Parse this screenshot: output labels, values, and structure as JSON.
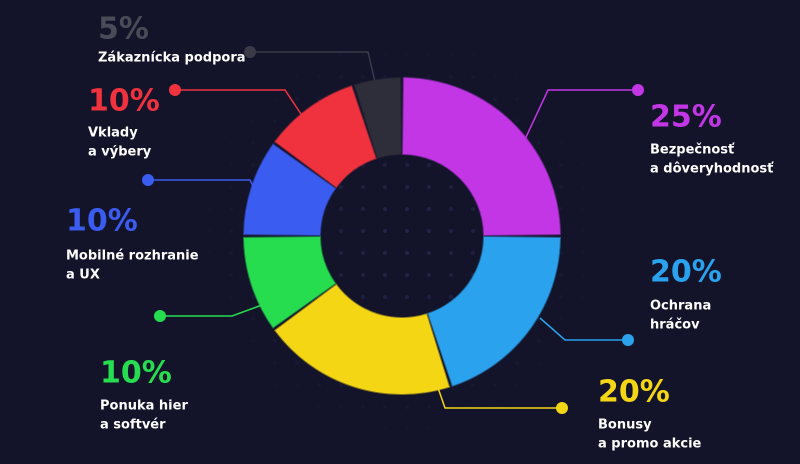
{
  "chart_data": {
    "type": "donut",
    "categories": [
      [
        "Bezpečnosť",
        "a dôveryhodnosť"
      ],
      [
        "Ochrana",
        "hráčov"
      ],
      [
        "Bonusy",
        "a promo akcie"
      ],
      [
        "Ponuka hier",
        "a softvér"
      ],
      [
        "Mobilné rozhranie",
        "a UX"
      ],
      [
        "Vklady",
        "a výbery"
      ],
      [
        "Zákaznícka podpora"
      ]
    ],
    "values": [
      25,
      20,
      20,
      10,
      10,
      10,
      5
    ],
    "value_labels": [
      "25%",
      "20%",
      "20%",
      "10%",
      "10%",
      "10%",
      "5%"
    ],
    "colors": [
      "#c236e6",
      "#2aa2ee",
      "#f4d614",
      "#25dd4f",
      "#3b5cf0",
      "#f0323f",
      "#2e2e3a"
    ]
  }
}
